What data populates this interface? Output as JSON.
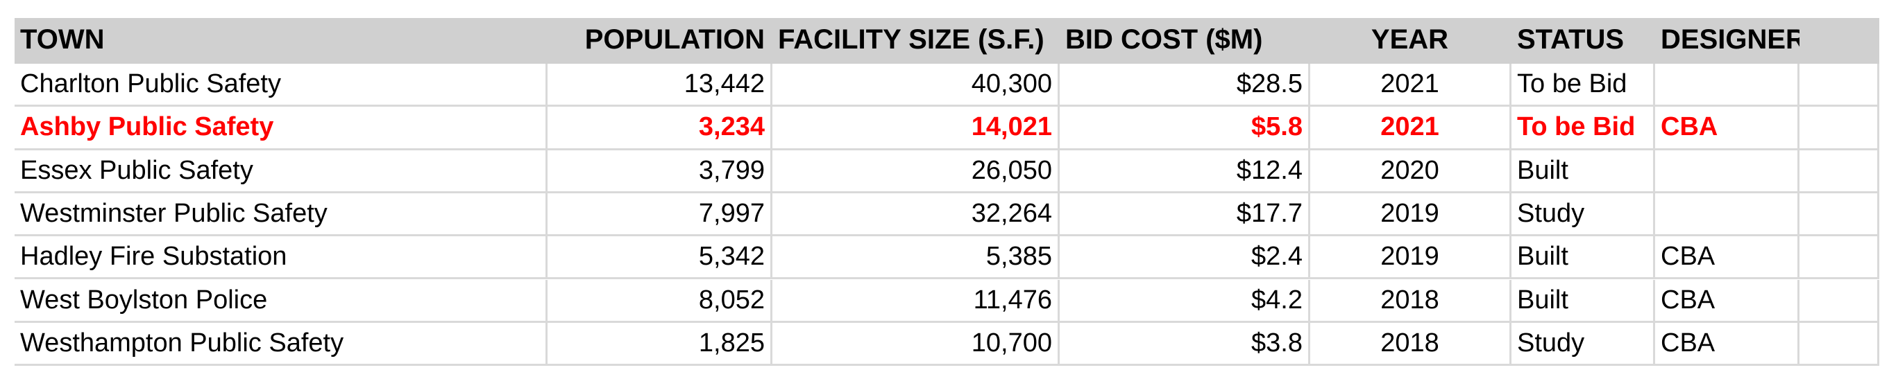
{
  "table": {
    "header": [
      "TOWN",
      "POPULATION",
      "FACILITY SIZE (S.F.)",
      "BID COST ($M)",
      "YEAR",
      "STATUS",
      "DESIGNER"
    ],
    "rows": [
      [
        "Charlton Public Safety",
        "13,442",
        "40,300",
        "$28.5",
        "2021",
        "To be Bid",
        ""
      ],
      [
        "Ashby Public Safety",
        "3,234",
        "14,021",
        "$5.8",
        "2021",
        "To be Bid",
        "CBA"
      ],
      [
        "Essex Public Safety",
        "3,799",
        "26,050",
        "$12.4",
        "2020",
        "Built",
        ""
      ],
      [
        "Westminster Public Safety",
        "7,997",
        "32,264",
        "$17.7",
        "2019",
        "Study",
        ""
      ],
      [
        "Hadley Fire Substation",
        "5,342",
        "5,385",
        "$2.4",
        "2019",
        "Built",
        "CBA"
      ],
      [
        "West Boylston Police",
        "8,052",
        "11,476",
        "$4.2",
        "2018",
        "Built",
        "CBA"
      ],
      [
        "Westhampton Public Safety",
        "1,825",
        "10,700",
        "$3.8",
        "2018",
        "Study",
        "CBA"
      ]
    ],
    "highlighted_rows": [
      1
    ],
    "highlight_color": "#ff0000"
  }
}
